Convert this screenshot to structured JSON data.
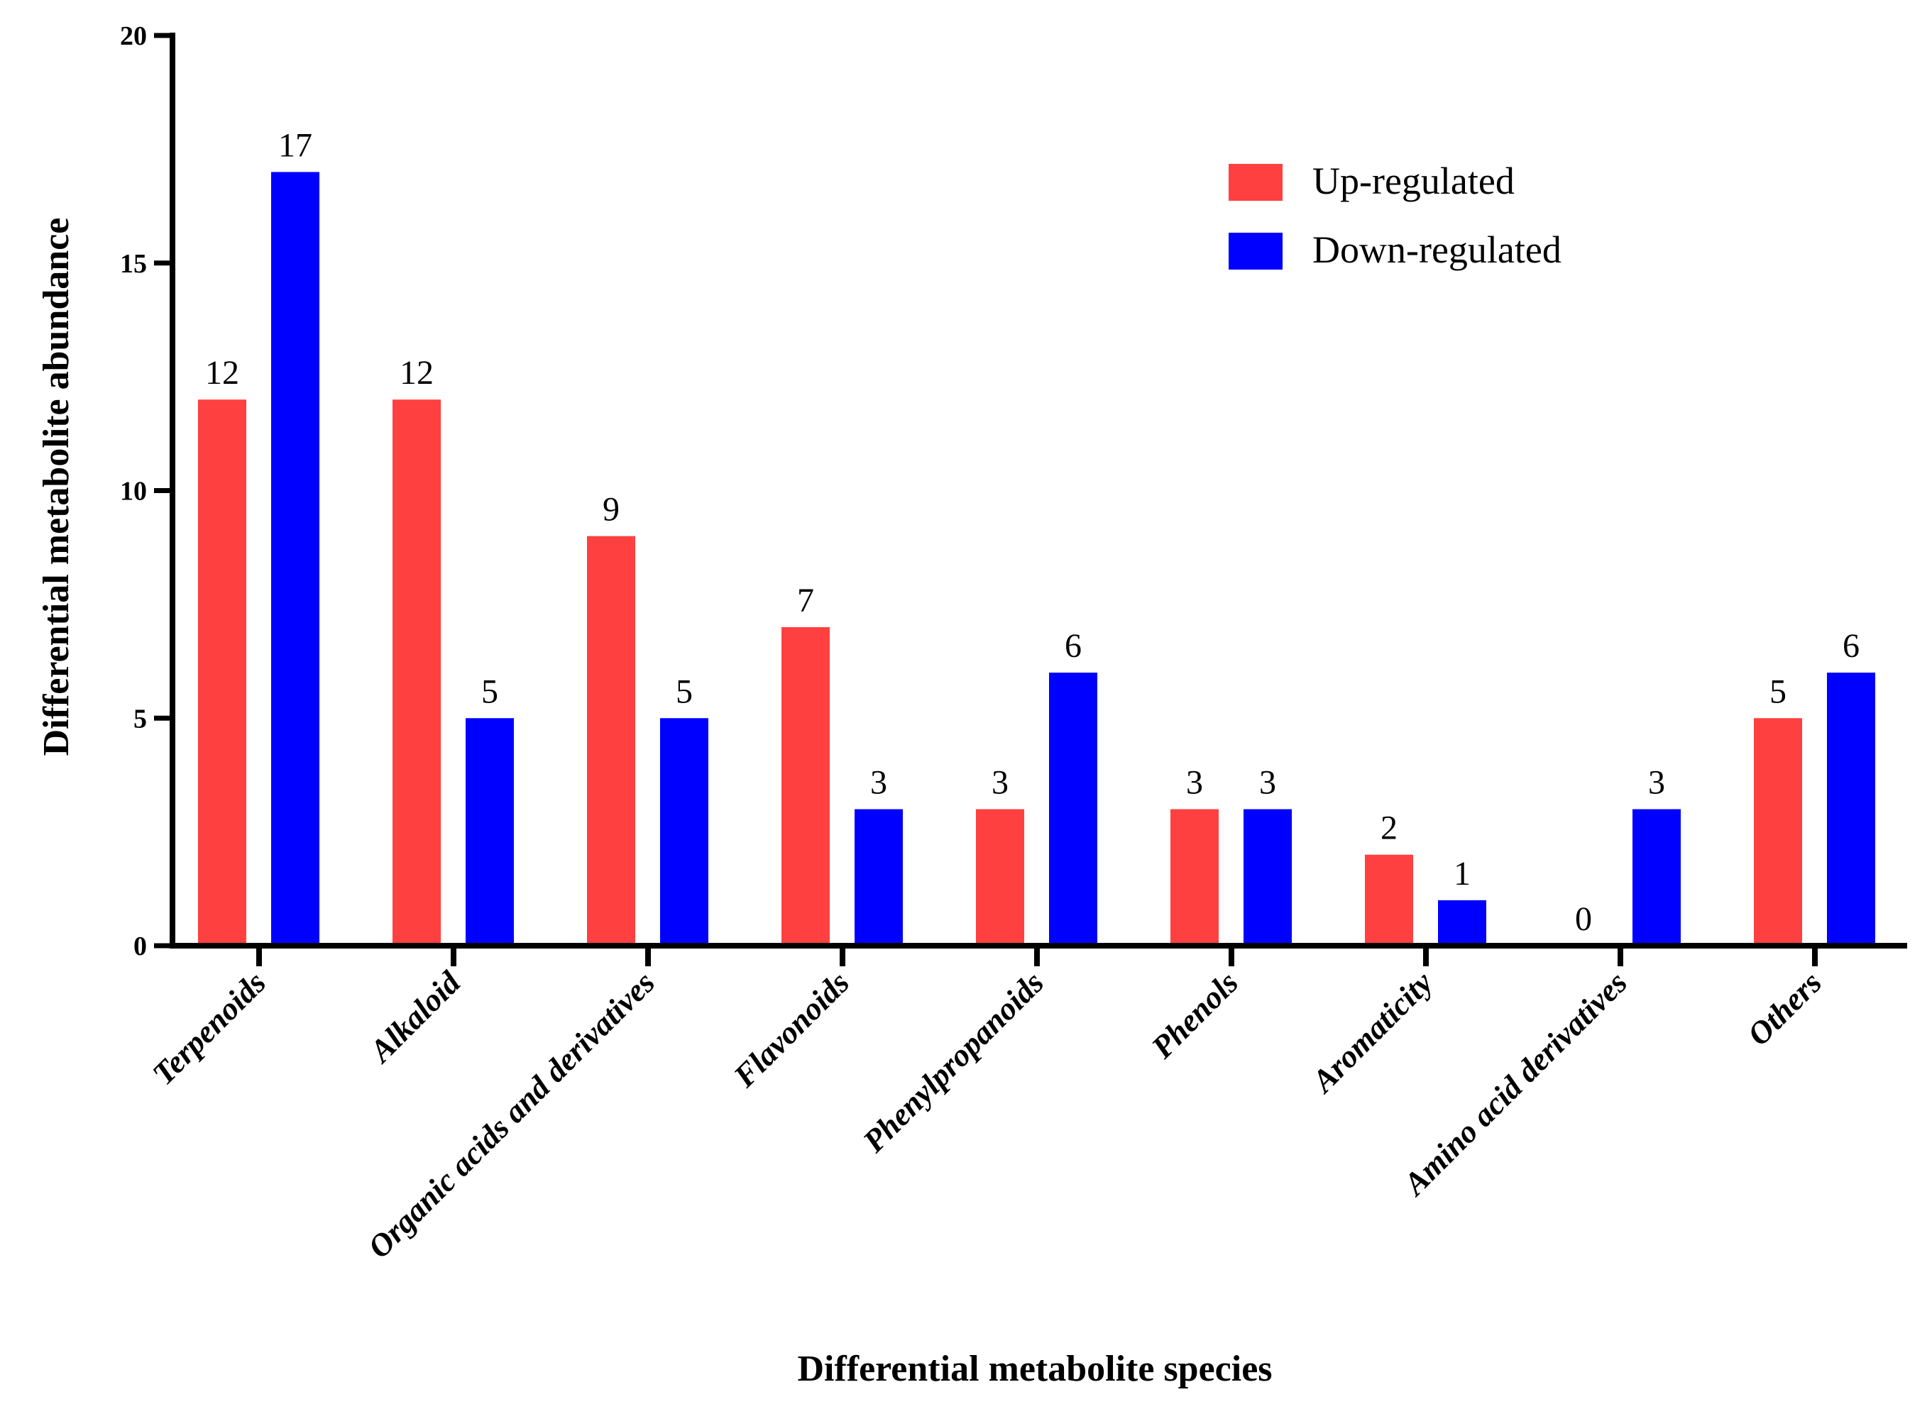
{
  "chart_data": {
    "type": "bar",
    "title": "",
    "xlabel": "Differential metabolite species",
    "ylabel": "Differential metabolite abundance",
    "ylim": [
      0,
      20
    ],
    "yticks": [
      0,
      5,
      10,
      15,
      20
    ],
    "categories": [
      "Terpenoids",
      "Alkaloid",
      "Organic acids and derivatives",
      "Flavonoids",
      "Phenylpropanoids",
      "Phenols",
      "Aromaticity",
      "Amino acid derivatives",
      "Others"
    ],
    "series": [
      {
        "name": "Up-regulated",
        "color": "#FF4040",
        "values": [
          12,
          12,
          9,
          7,
          3,
          3,
          2,
          0,
          5
        ]
      },
      {
        "name": "Down-regulated",
        "color": "#0000FF",
        "values": [
          17,
          5,
          5,
          3,
          6,
          3,
          1,
          3,
          6
        ]
      }
    ],
    "legend_position": "top-right",
    "grid": false
  }
}
